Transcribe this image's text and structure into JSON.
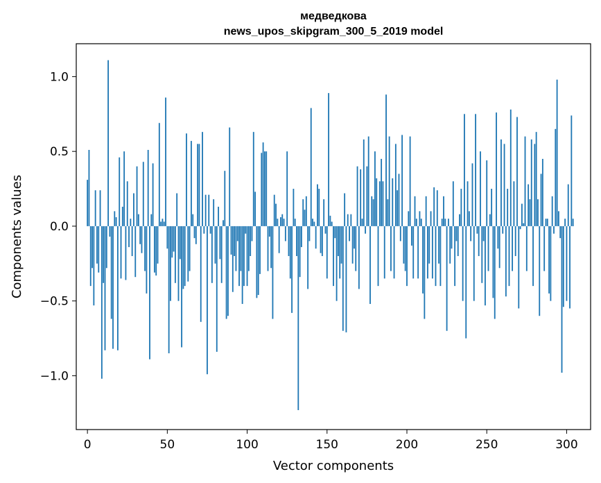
{
  "chart_data": {
    "type": "bar",
    "title": "медведкова",
    "subtitle": "news_upos_skipgram_300_5_2019 model",
    "xlabel": "Vector components",
    "ylabel": "Components values",
    "xlim": [
      -7,
      315
    ],
    "ylim": [
      -1.36,
      1.22
    ],
    "xticks": [
      0,
      50,
      100,
      150,
      200,
      250,
      300
    ],
    "yticks": [
      -1.0,
      -0.5,
      0.0,
      0.5,
      1.0
    ],
    "ytick_labels": [
      "−1.0",
      "−0.5",
      "0.0",
      "0.5",
      "1.0"
    ],
    "grid": false,
    "bar_color": "#1f77b4",
    "values": [
      0.31,
      0.51,
      -0.4,
      -0.28,
      -0.53,
      0.24,
      -0.25,
      -0.31,
      0.24,
      -1.02,
      -0.38,
      -0.83,
      -0.28,
      1.11,
      -0.07,
      -0.62,
      -0.82,
      0.1,
      0.06,
      -0.83,
      0.46,
      -0.35,
      0.13,
      0.5,
      -0.36,
      0.3,
      -0.14,
      0.05,
      -0.2,
      0.22,
      -0.34,
      0.4,
      0.08,
      -0.12,
      -0.18,
      0.43,
      -0.3,
      -0.45,
      0.51,
      -0.89,
      0.08,
      0.42,
      -0.31,
      -0.33,
      -0.25,
      0.69,
      0.03,
      0.05,
      0.03,
      0.86,
      -0.15,
      -0.85,
      -0.5,
      -0.21,
      -0.17,
      -0.38,
      0.22,
      -0.5,
      -0.22,
      -0.81,
      -0.42,
      -0.4,
      0.62,
      -0.37,
      -0.3,
      0.57,
      0.08,
      -0.08,
      -0.12,
      0.55,
      0.55,
      -0.64,
      0.63,
      -0.05,
      0.21,
      -0.99,
      0.21,
      -0.05,
      -0.38,
      0.18,
      -0.25,
      -0.84,
      0.13,
      -0.22,
      -0.38,
      0.04,
      0.37,
      -0.62,
      -0.6,
      0.66,
      -0.19,
      -0.44,
      -0.2,
      -0.3,
      -0.1,
      -0.4,
      -0.3,
      -0.52,
      -0.4,
      -0.05,
      -0.4,
      -0.3,
      -0.2,
      -0.1,
      0.63,
      0.23,
      -0.48,
      -0.46,
      -0.32,
      0.49,
      0.56,
      0.5,
      0.5,
      -0.3,
      -0.07,
      -0.28,
      -0.62,
      0.21,
      0.15,
      0.05,
      -0.18,
      0.06,
      0.08,
      0.05,
      -0.1,
      0.5,
      -0.2,
      -0.35,
      -0.58,
      0.25,
      0.05,
      -0.2,
      -1.23,
      -0.34,
      -0.14,
      0.18,
      0.11,
      0.2,
      -0.42,
      -0.1,
      0.79,
      0.05,
      0.03,
      -0.15,
      0.28,
      0.25,
      -0.18,
      -0.2,
      0.18,
      -0.05,
      -0.35,
      0.89,
      0.07,
      0.03,
      -0.4,
      -0.08,
      -0.5,
      -0.2,
      -0.35,
      -0.25,
      -0.7,
      0.22,
      -0.71,
      0.08,
      -0.1,
      0.08,
      -0.25,
      -0.15,
      -0.3,
      0.4,
      -0.42,
      0.38,
      0.05,
      0.58,
      -0.05,
      0.4,
      0.6,
      -0.52,
      0.2,
      0.18,
      0.5,
      0.32,
      -0.4,
      0.3,
      0.45,
      0.3,
      -0.35,
      0.88,
      0.18,
      0.6,
      -0.3,
      0.32,
      -0.35,
      0.55,
      0.24,
      0.35,
      -0.1,
      0.61,
      -0.25,
      -0.3,
      -0.4,
      0.1,
      0.6,
      -0.13,
      -0.35,
      0.2,
      0.05,
      -0.35,
      0.1,
      0.05,
      -0.45,
      -0.62,
      0.2,
      -0.35,
      -0.25,
      0.1,
      -0.35,
      0.26,
      -0.4,
      0.24,
      -0.25,
      -0.4,
      0.05,
      0.2,
      0.05,
      -0.7,
      0.05,
      -0.25,
      -0.15,
      0.3,
      -0.4,
      -0.1,
      -0.2,
      0.08,
      0.25,
      -0.5,
      0.75,
      -0.75,
      0.3,
      0.1,
      -0.1,
      0.42,
      -0.5,
      0.75,
      -0.05,
      -0.2,
      0.5,
      -0.38,
      -0.1,
      -0.53,
      0.44,
      -0.3,
      0.08,
      0.25,
      -0.48,
      -0.62,
      0.76,
      -0.15,
      -0.28,
      0.58,
      -0.05,
      0.55,
      -0.47,
      0.25,
      -0.4,
      0.78,
      -0.3,
      0.3,
      -0.2,
      0.73,
      -0.55,
      -0.02,
      0.15,
      0.02,
      0.6,
      -0.3,
      0.28,
      0.18,
      0.58,
      -0.4,
      0.55,
      0.63,
      0.18,
      -0.6,
      0.35,
      0.45,
      -0.3,
      0.05,
      0.05,
      -0.45,
      -0.5,
      0.2,
      -0.05,
      0.65,
      0.98,
      0.1,
      -0.08,
      -0.98,
      -0.54,
      0.05,
      -0.5,
      0.28,
      -0.55,
      0.74,
      0.05
    ]
  }
}
